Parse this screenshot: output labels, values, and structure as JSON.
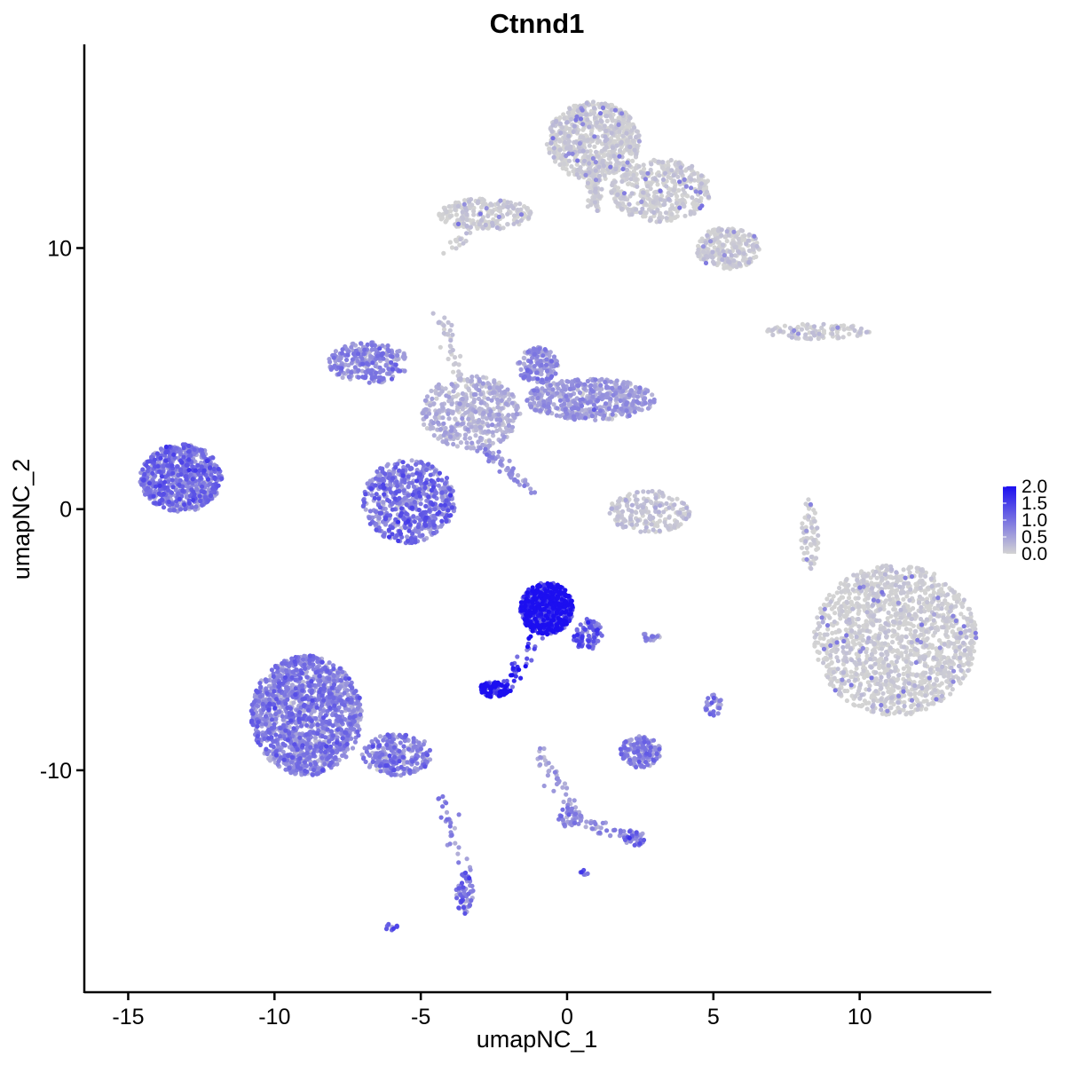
{
  "chart_data": {
    "type": "scatter",
    "title": "Ctnnd1",
    "xlabel": "umapNC_1",
    "ylabel": "umapNC_2",
    "xlim": [
      -16.5,
      14.5
    ],
    "ylim": [
      -18.5,
      17.8
    ],
    "x_ticks": [
      -15,
      -10,
      -5,
      0,
      5,
      10
    ],
    "x_tick_labels": [
      "-15",
      "-10",
      "-5",
      "0",
      "5",
      "10"
    ],
    "y_ticks": [
      -10,
      0,
      10
    ],
    "y_tick_labels": [
      "-10",
      "0",
      "10"
    ],
    "grid": false,
    "legend": {
      "position": "right",
      "type": "colorbar",
      "range": [
        0.0,
        2.0
      ],
      "labels": [
        "2.0",
        "1.5",
        "1.0",
        "0.5",
        "0.0"
      ],
      "low_color": "#d3d3d3",
      "high_color": "#1c0ff0"
    },
    "clusters": [
      {
        "name": "",
        "x": 0.9,
        "y": 14.1,
        "rx": 1.6,
        "ry": 1.5,
        "n": 700,
        "expr": 0.02
      },
      {
        "name": "",
        "x": 3.2,
        "y": 12.2,
        "rx": 1.7,
        "ry": 1.2,
        "n": 420,
        "expr": 0.02
      },
      {
        "name": "",
        "x": 5.5,
        "y": 10.0,
        "rx": 1.1,
        "ry": 0.8,
        "n": 260,
        "expr": 0.02
      },
      {
        "name": "",
        "x": -2.8,
        "y": 11.3,
        "rx": 1.6,
        "ry": 0.6,
        "n": 220,
        "expr": 0.02
      },
      {
        "name": "",
        "x": 8.6,
        "y": 6.8,
        "rx": 1.8,
        "ry": 0.3,
        "n": 100,
        "expr": 0.05
      },
      {
        "name": "",
        "x": 11.2,
        "y": -5.0,
        "rx": 2.8,
        "ry": 2.9,
        "n": 1500,
        "expr": 0.01
      },
      {
        "name": "",
        "x": 8.3,
        "y": -1.0,
        "rx": 0.3,
        "ry": 1.4,
        "n": 70,
        "expr": 0.0
      },
      {
        "name": "",
        "x": 2.8,
        "y": -0.1,
        "rx": 1.4,
        "ry": 0.8,
        "n": 200,
        "expr": 0.1
      },
      {
        "name": "",
        "x": -13.2,
        "y": 1.2,
        "rx": 1.4,
        "ry": 1.3,
        "n": 700,
        "expr": 0.85
      },
      {
        "name": "",
        "x": -5.4,
        "y": 0.3,
        "rx": 1.6,
        "ry": 1.6,
        "n": 600,
        "expr": 0.85
      },
      {
        "name": "",
        "x": -6.8,
        "y": 5.6,
        "rx": 1.4,
        "ry": 0.8,
        "n": 250,
        "expr": 0.7
      },
      {
        "name": "",
        "x": -3.3,
        "y": 3.7,
        "rx": 1.7,
        "ry": 1.4,
        "n": 450,
        "expr": 0.3
      },
      {
        "name": "",
        "x": 0.8,
        "y": 4.2,
        "rx": 2.2,
        "ry": 0.8,
        "n": 500,
        "expr": 0.5
      },
      {
        "name": "",
        "x": -1.0,
        "y": 5.5,
        "rx": 0.7,
        "ry": 0.7,
        "n": 150,
        "expr": 0.6
      },
      {
        "name": "",
        "x": -0.7,
        "y": -3.8,
        "rx": 0.9,
        "ry": 1.0,
        "n": 600,
        "expr": 1.6
      },
      {
        "name": "",
        "x": 0.7,
        "y": -4.8,
        "rx": 0.5,
        "ry": 0.6,
        "n": 80,
        "expr": 1.0
      },
      {
        "name": "",
        "x": -2.5,
        "y": -6.9,
        "rx": 0.5,
        "ry": 0.3,
        "n": 90,
        "expr": 1.8
      },
      {
        "name": "",
        "x": -8.9,
        "y": -7.9,
        "rx": 1.9,
        "ry": 2.3,
        "n": 1400,
        "expr": 0.75
      },
      {
        "name": "",
        "x": -5.8,
        "y": -9.4,
        "rx": 1.2,
        "ry": 0.8,
        "n": 250,
        "expr": 0.75
      },
      {
        "name": "",
        "x": 2.5,
        "y": -9.3,
        "rx": 0.7,
        "ry": 0.6,
        "n": 150,
        "expr": 0.7
      },
      {
        "name": "",
        "x": -3.5,
        "y": -14.7,
        "rx": 0.3,
        "ry": 0.8,
        "n": 60,
        "expr": 0.9
      },
      {
        "name": "",
        "x": 0.1,
        "y": -11.8,
        "rx": 0.4,
        "ry": 0.4,
        "n": 40,
        "expr": 0.7
      },
      {
        "name": "",
        "x": 2.3,
        "y": -12.6,
        "rx": 0.4,
        "ry": 0.3,
        "n": 30,
        "expr": 0.9
      },
      {
        "name": "",
        "x": 5.0,
        "y": -7.5,
        "rx": 0.3,
        "ry": 0.4,
        "n": 30,
        "expr": 0.9
      },
      {
        "name": "",
        "x": 2.8,
        "y": -4.9,
        "rx": 0.4,
        "ry": 0.15,
        "n": 20,
        "expr": 0.8
      },
      {
        "name": "",
        "x": -6.0,
        "y": -16.0,
        "rx": 0.2,
        "ry": 0.15,
        "n": 10,
        "expr": 1.0
      },
      {
        "name": "",
        "x": 0.6,
        "y": -13.9,
        "rx": 0.15,
        "ry": 0.1,
        "n": 6,
        "expr": 1.0
      }
    ],
    "streaks": [
      {
        "name": "",
        "from": [
          -4.4,
          7.6
        ],
        "to": [
          -3.0,
          3.0
        ],
        "n": 60,
        "expr": 0.1
      },
      {
        "name": "",
        "from": [
          -3.0,
          2.5
        ],
        "to": [
          -1.2,
          0.7
        ],
        "n": 60,
        "expr": 0.6
      },
      {
        "name": "",
        "from": [
          -2.1,
          -6.9
        ],
        "to": [
          -1.0,
          -4.6
        ],
        "n": 40,
        "expr": 1.5
      },
      {
        "name": "",
        "from": [
          -0.9,
          -9.3
        ],
        "to": [
          0.2,
          -11.5
        ],
        "n": 40,
        "expr": 0.5
      },
      {
        "name": "",
        "from": [
          0.3,
          -12.0
        ],
        "to": [
          2.4,
          -12.6
        ],
        "n": 40,
        "expr": 0.6
      },
      {
        "name": "",
        "from": [
          -4.3,
          -11.0
        ],
        "to": [
          -3.5,
          -14.0
        ],
        "n": 30,
        "expr": 0.7
      },
      {
        "name": "",
        "from": [
          1.0,
          11.5
        ],
        "to": [
          0.8,
          13.0
        ],
        "n": 80,
        "expr": 0.02
      },
      {
        "name": "",
        "from": [
          -4.0,
          10.0
        ],
        "to": [
          -2.8,
          11.0
        ],
        "n": 20,
        "expr": 0.0
      }
    ]
  }
}
